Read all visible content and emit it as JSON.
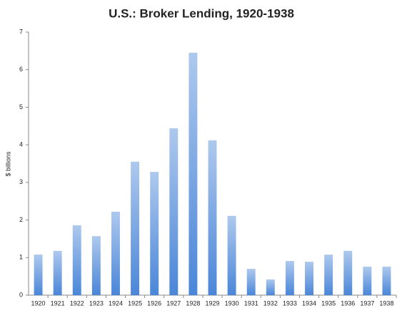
{
  "chart_data": {
    "type": "bar",
    "title": "U.S.: Broker Lending, 1920-1938",
    "y_label": "$ billions",
    "categories": [
      "1920",
      "1921",
      "1922",
      "1923",
      "1924",
      "1925",
      "1926",
      "1927",
      "1928",
      "1929",
      "1930",
      "1931",
      "1932",
      "1933",
      "1934",
      "1935",
      "1936",
      "1937",
      "1938"
    ],
    "values": [
      1.08,
      1.18,
      1.86,
      1.57,
      2.22,
      3.55,
      3.28,
      4.44,
      6.45,
      4.12,
      2.11,
      0.7,
      0.42,
      0.91,
      0.89,
      1.08,
      1.18,
      0.76,
      0.76
    ],
    "color": "#4a86d8",
    "ylim": [
      0,
      7
    ],
    "yticks": [
      0,
      1,
      2,
      3,
      4,
      5,
      6,
      7
    ],
    "grid": false
  }
}
